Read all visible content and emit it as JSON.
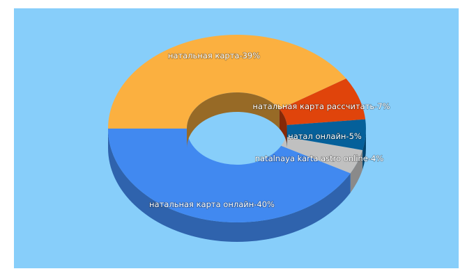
{
  "chart_data": {
    "type": "pie",
    "style": "3d-donut",
    "slices": [
      {
        "label": "натальная карта-39%",
        "value": 39,
        "color": "#fbb040"
      },
      {
        "label": "натальная карта рассчитать-7%",
        "value": 7,
        "color": "#e0440b"
      },
      {
        "label": "натал онлайн-5%",
        "value": 5,
        "color": "#05609a"
      },
      {
        "label": "natalnaya karta astro online-4%",
        "value": 4,
        "color": "#c0c0c0"
      },
      {
        "label": "натальная карта онлайн-40%",
        "value": 40,
        "color": "#4189f0"
      }
    ],
    "background": "#87cefa"
  }
}
